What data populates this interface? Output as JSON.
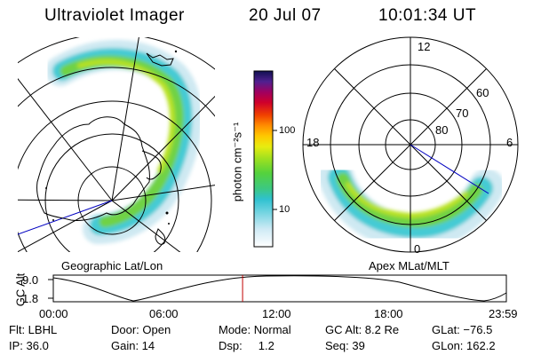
{
  "header": {
    "instrument": "Ultraviolet Imager",
    "date": "20 Jul 07",
    "time": "10:01:34 UT"
  },
  "colorbar": {
    "label": "photon cm⁻²s⁻¹",
    "ticks": [
      "100",
      "10"
    ]
  },
  "left_panel": {
    "caption": "Geographic Lat/Lon"
  },
  "right_panel": {
    "caption": "Apex MLat/MLT",
    "mlt_labels": {
      "top": "12",
      "left": "18",
      "right": "6",
      "bottom": "0"
    },
    "lat_labels": [
      "60",
      "70",
      "80"
    ]
  },
  "timeline": {
    "ylabel": "GC Alt",
    "yticks": [
      "9.0",
      "1.8"
    ],
    "xticks": [
      "00:00",
      "06:00",
      "12:00",
      "18:00",
      "23:59"
    ],
    "cursor_fraction": 0.4178
  },
  "status": {
    "flt": "Flt: LBHL",
    "ip": "IP: 36.0",
    "door": "Door: Open",
    "gain": "Gain: 14",
    "mode": "Mode: Normal",
    "dsp": "Dsp:     1.2",
    "gc_alt": "GC Alt: 8.2 Re",
    "seq": "Seq: 39",
    "glat": "GLat: −76.5",
    "glon": "GLon: 162.2"
  },
  "colors": {
    "cursor": "#c00000",
    "axis_line": "#0000c0"
  }
}
